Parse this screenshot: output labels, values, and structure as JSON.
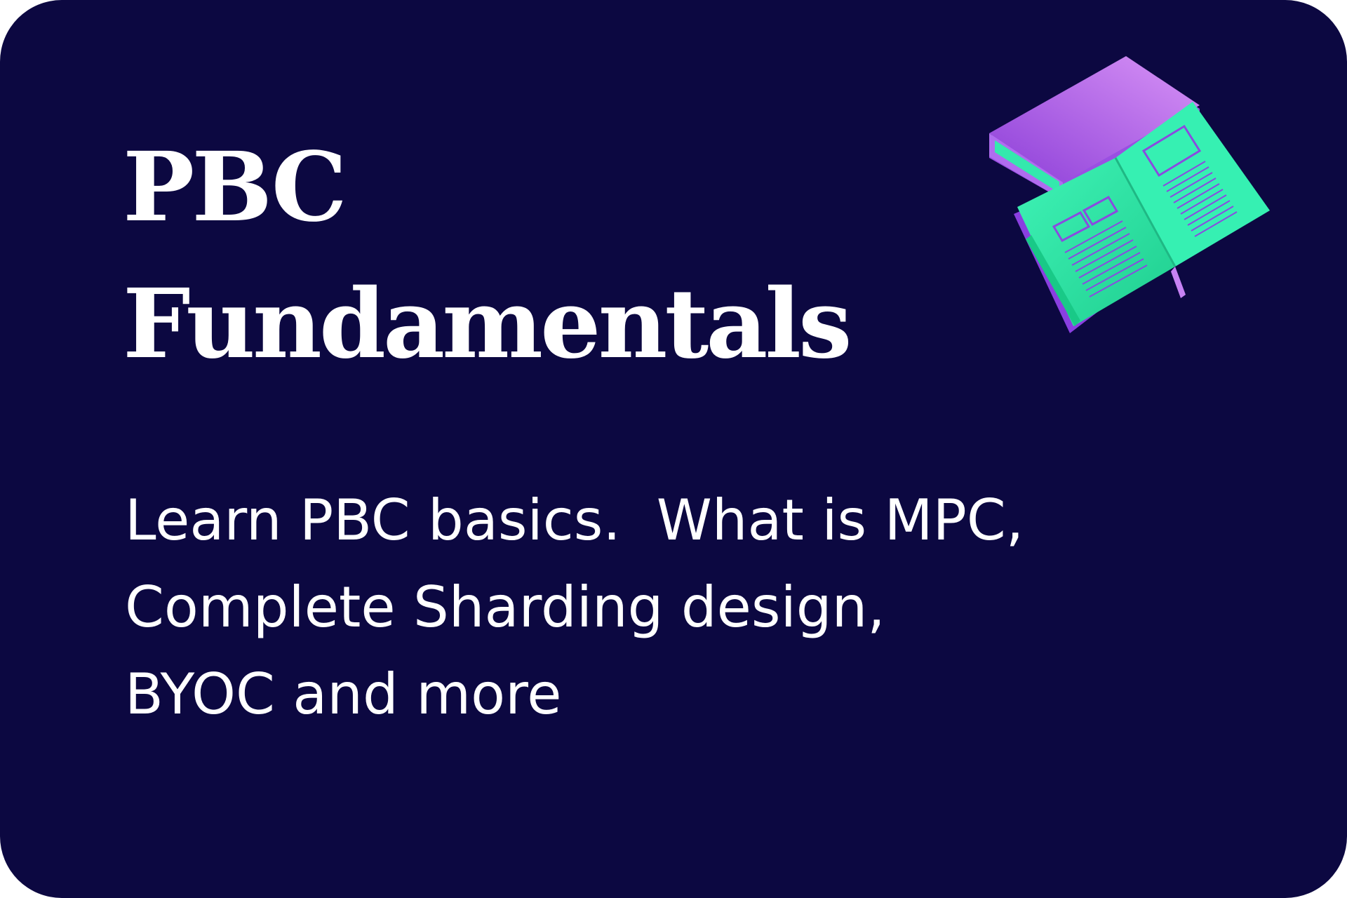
{
  "card": {
    "title_lines": [
      "PBC",
      "Fundamentals"
    ],
    "description_lines": [
      "Learn PBC basics.  What is MPC,",
      "Complete Sharding design,",
      "BYOC and more"
    ],
    "icon": "open-book-icon"
  },
  "colors": {
    "background": "#0c0841",
    "text": "#ffffff",
    "book_green": "#2ee8a6",
    "book_purple": "#a25ae6"
  }
}
